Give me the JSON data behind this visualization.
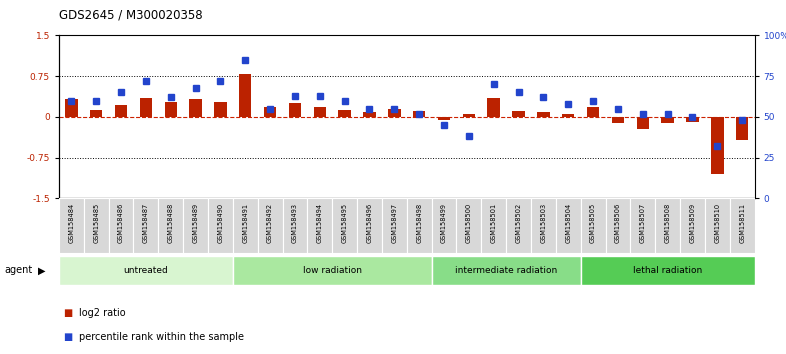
{
  "title": "GDS2645 / M300020358",
  "samples": [
    "GSM158484",
    "GSM158485",
    "GSM158486",
    "GSM158487",
    "GSM158488",
    "GSM158489",
    "GSM158490",
    "GSM158491",
    "GSM158492",
    "GSM158493",
    "GSM158494",
    "GSM158495",
    "GSM158496",
    "GSM158497",
    "GSM158498",
    "GSM158499",
    "GSM158500",
    "GSM158501",
    "GSM158502",
    "GSM158503",
    "GSM158504",
    "GSM158505",
    "GSM158506",
    "GSM158507",
    "GSM158508",
    "GSM158509",
    "GSM158510",
    "GSM158511"
  ],
  "log2_ratio": [
    0.32,
    0.12,
    0.22,
    0.35,
    0.28,
    0.32,
    0.28,
    0.78,
    0.18,
    0.25,
    0.18,
    0.12,
    0.08,
    0.15,
    0.1,
    -0.05,
    0.06,
    0.35,
    0.1,
    0.08,
    0.05,
    0.18,
    -0.12,
    -0.22,
    -0.12,
    -0.1,
    -1.05,
    -0.42
  ],
  "percentile_rank": [
    60,
    60,
    65,
    72,
    62,
    68,
    72,
    85,
    55,
    63,
    63,
    60,
    55,
    55,
    52,
    45,
    38,
    70,
    65,
    62,
    58,
    60,
    55,
    52,
    52,
    50,
    32,
    48
  ],
  "groups": [
    {
      "label": "untreated",
      "start": 0,
      "end": 7,
      "color": "#d8f5d0"
    },
    {
      "label": "low radiation",
      "start": 7,
      "end": 15,
      "color": "#aae8a0"
    },
    {
      "label": "intermediate radiation",
      "start": 15,
      "end": 21,
      "color": "#88dd88"
    },
    {
      "label": "lethal radiation",
      "start": 21,
      "end": 28,
      "color": "#55cc55"
    }
  ],
  "bar_color_red": "#bb2200",
  "bar_color_blue": "#2244cc",
  "dashed_line_color": "#cc2200",
  "bg_color": "#ffffff",
  "ylim_left": [
    -1.5,
    1.5
  ],
  "ylim_right": [
    0,
    100
  ],
  "yticks_left": [
    -1.5,
    -0.75,
    0.0,
    0.75,
    1.5
  ],
  "yticks_right": [
    0,
    25,
    50,
    75,
    100
  ],
  "ytick_labels_right": [
    "0",
    "25",
    "50",
    "75",
    "100%"
  ],
  "hline_values": [
    0.75,
    -0.75
  ],
  "agent_label": "agent"
}
